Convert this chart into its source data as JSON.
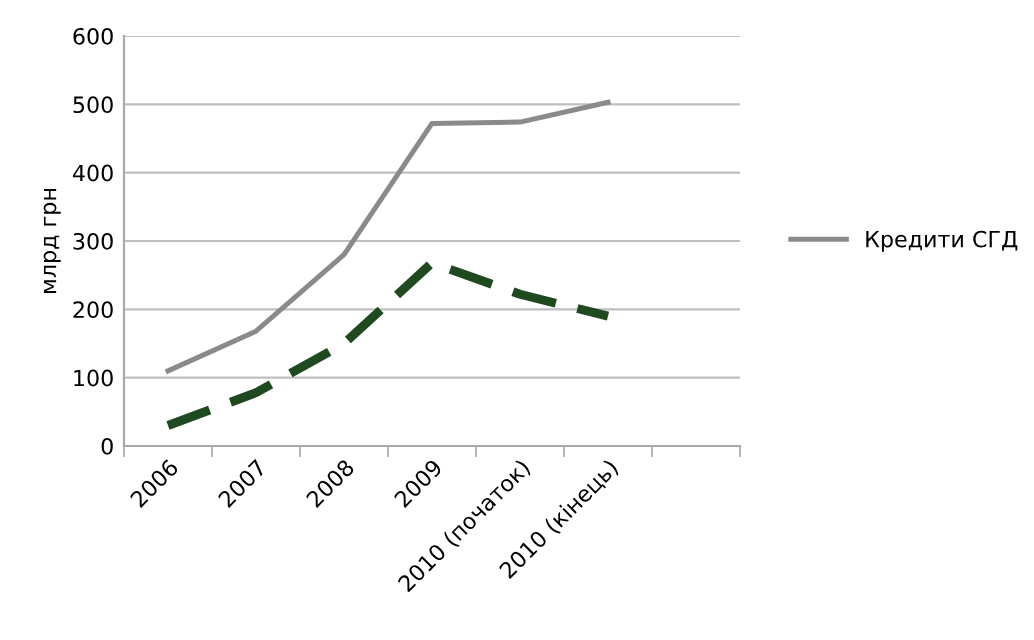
{
  "chart_data": {
    "type": "line",
    "ylabel": "млрд грн",
    "categories": [
      "2006",
      "2007",
      "2008",
      "2009",
      "2010 (початок)",
      "2010 (кінець)",
      null
    ],
    "series": [
      {
        "name": "Кредити СГД",
        "color": "#8a8a8a",
        "line_style": "solid",
        "values": [
          110,
          168,
          280,
          472,
          474,
          503,
          null
        ]
      },
      {
        "color": "#1f4a1f",
        "line_style": "dashed",
        "values": [
          30,
          78,
          150,
          268,
          222,
          190,
          null
        ]
      }
    ],
    "ylim": [
      0,
      600
    ],
    "yticks": [
      0,
      100,
      200,
      300,
      400,
      500,
      600
    ],
    "grid": "y",
    "legend": "right",
    "marker": "none"
  }
}
